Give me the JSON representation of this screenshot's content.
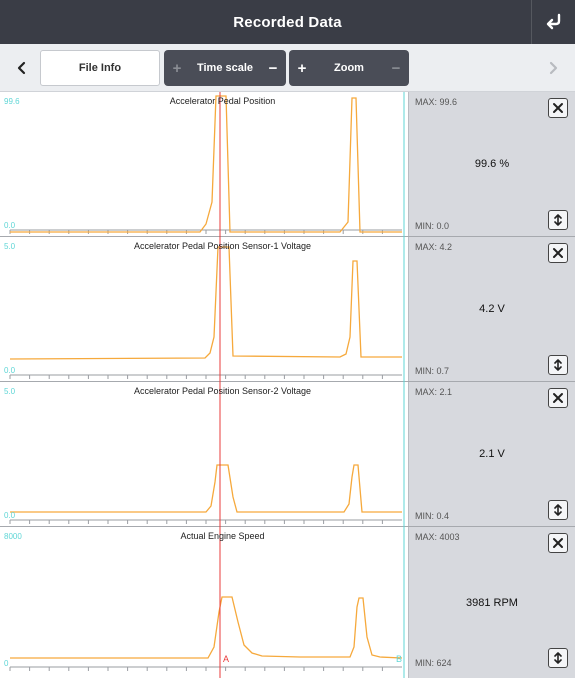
{
  "header": {
    "title": "Recorded Data",
    "back_icon": "return-arrow-icon"
  },
  "toolbar": {
    "file_info_label": "File Info",
    "time_scale_label": "Time scale",
    "zoom_label": "Zoom",
    "plus": "+",
    "minus": "−"
  },
  "cursor": {
    "a_label": "A",
    "b_label": "B"
  },
  "colors": {
    "trace": "#f6a93c",
    "cursor": "#e83b3b",
    "axis": "#5fd6d6",
    "header": "#3a3d46"
  },
  "panels": [
    {
      "title": "Accelerator Pedal Position",
      "y_max": "99.6",
      "y_min": "0.0",
      "max": "MAX: 99.6",
      "min": "MIN: 0.0",
      "value": "99.6 %"
    },
    {
      "title": "Accelerator Pedal Position Sensor-1 Voltage",
      "y_max": "5.0",
      "y_min": "0.0",
      "max": "MAX: 4.2",
      "min": "MIN: 0.7",
      "value": "4.2 V"
    },
    {
      "title": "Accelerator Pedal Position Sensor-2 Voltage",
      "y_max": "5.0",
      "y_min": "0.0",
      "max": "MAX: 2.1",
      "min": "MIN: 0.4",
      "value": "2.1 V"
    },
    {
      "title": "Actual Engine Speed",
      "y_max": "8000",
      "y_min": "0",
      "max": "MAX: 4003",
      "min": "MIN: 624",
      "value": "3981 RPM"
    }
  ]
}
